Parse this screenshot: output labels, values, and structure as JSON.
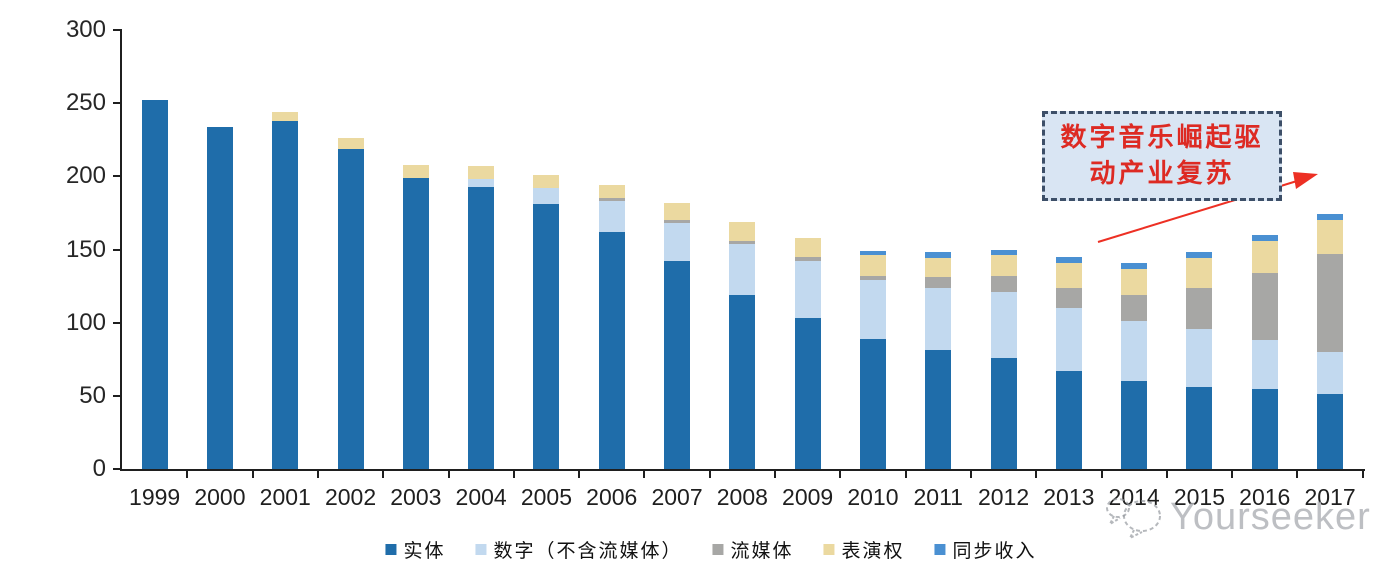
{
  "chart_data": {
    "type": "bar",
    "stacked": true,
    "categories": [
      "1999",
      "2000",
      "2001",
      "2002",
      "2003",
      "2004",
      "2005",
      "2006",
      "2007",
      "2008",
      "2009",
      "2010",
      "2011",
      "2012",
      "2013",
      "2014",
      "2015",
      "2016",
      "2017"
    ],
    "series": [
      {
        "name": "实体",
        "color": "#1f6daa",
        "values": [
          252,
          234,
          238,
          219,
          199,
          193,
          181,
          162,
          142,
          119,
          103,
          89,
          81,
          76,
          67,
          60,
          56,
          55,
          51
        ]
      },
      {
        "name": "数字（不含流媒体）",
        "color": "#c2d9ef",
        "values": [
          0,
          0,
          0,
          0,
          0,
          5,
          11,
          21,
          26,
          35,
          39,
          40,
          43,
          45,
          43,
          41,
          40,
          33,
          29
        ]
      },
      {
        "name": "流媒体",
        "color": "#a7a7a5",
        "values": [
          0,
          0,
          0,
          0,
          0,
          0,
          0,
          2,
          2,
          2,
          3,
          3,
          7,
          11,
          14,
          18,
          28,
          46,
          67
        ]
      },
      {
        "name": "表演权",
        "color": "#ebd9a0",
        "values": [
          0,
          0,
          6,
          7,
          9,
          9,
          9,
          9,
          12,
          13,
          13,
          14,
          13,
          14,
          17,
          18,
          20,
          22,
          23
        ]
      },
      {
        "name": "同步收入",
        "color": "#4a90d2",
        "values": [
          0,
          0,
          0,
          0,
          0,
          0,
          0,
          0,
          0,
          0,
          0,
          3,
          4,
          4,
          4,
          4,
          4,
          4,
          4
        ]
      }
    ],
    "ylim": [
      0,
      300
    ],
    "yticks": [
      0,
      50,
      100,
      150,
      200,
      250,
      300
    ],
    "xlabel": "",
    "ylabel": "",
    "grid": false,
    "legend_position": "bottom"
  },
  "annotation": {
    "line1": "数字音乐崛起驱",
    "line2": "动产业复苏",
    "arrow_color": "#ed3024"
  },
  "watermark": {
    "text": "Yourseeker"
  }
}
